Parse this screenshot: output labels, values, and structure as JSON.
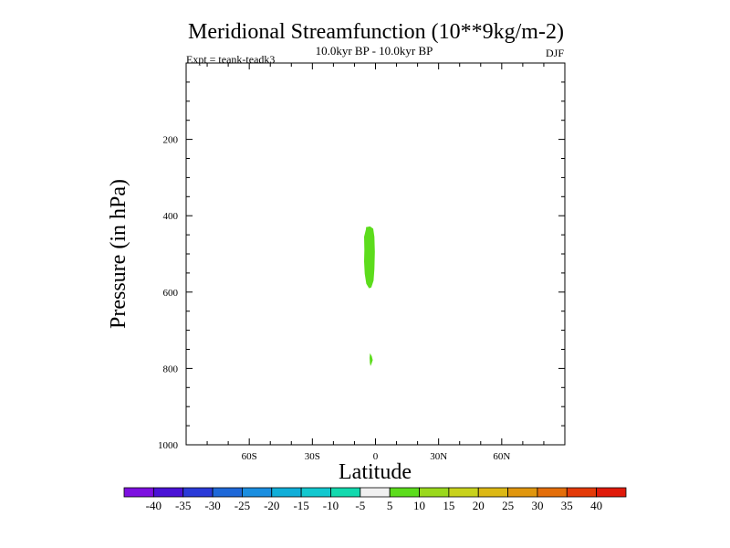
{
  "chart_data": {
    "type": "contour",
    "title": "Meridional Streamfunction (10**9kg/m-2)",
    "subtitle": "10.0kyr BP - 10.0kyr BP",
    "experiment_label": "Expt = teank-teadk3",
    "season": "DJF",
    "xlabel": "Latitude",
    "ylabel": "Pressure (in hPa)",
    "xlim": [
      -90,
      90
    ],
    "ylim": [
      0,
      1000
    ],
    "y_inverted": true,
    "x_ticks": [
      {
        "value": -60,
        "label": "60S"
      },
      {
        "value": -30,
        "label": "30S"
      },
      {
        "value": 0,
        "label": "0"
      },
      {
        "value": 30,
        "label": "30N"
      },
      {
        "value": 60,
        "label": "60N"
      }
    ],
    "y_ticks": [
      {
        "value": 200,
        "label": "200"
      },
      {
        "value": 400,
        "label": "400"
      },
      {
        "value": 600,
        "label": "600"
      },
      {
        "value": 800,
        "label": "800"
      },
      {
        "value": 1000,
        "label": "1000"
      }
    ],
    "x_minor_step": 10,
    "y_minor_step": 50,
    "colorbar": {
      "levels": [
        "-40",
        "-35",
        "-30",
        "-25",
        "-20",
        "-15",
        "-10",
        "-5",
        "5",
        "10",
        "15",
        "20",
        "25",
        "30",
        "35",
        "40"
      ],
      "colors": [
        "#7d10e0",
        "#4a12d6",
        "#2a3ad8",
        "#1e68d8",
        "#1a8ee0",
        "#10aed8",
        "#12c8cf",
        "#12d9ae",
        "#f0f0f0",
        "#5cdc1c",
        "#9ad81c",
        "#c8d21c",
        "#dcb814",
        "#e0960e",
        "#e46e0a",
        "#e43a08",
        "#e01a0a"
      ]
    },
    "regions": [
      {
        "value_range": "5 to 10",
        "color_index": 9,
        "outline": [
          [
            -4.5,
            430
          ],
          [
            -2.6,
            428
          ],
          [
            -1.1,
            434
          ],
          [
            -0.5,
            455
          ],
          [
            -0.3,
            495
          ],
          [
            -0.5,
            540
          ],
          [
            -0.9,
            570
          ],
          [
            -2.0,
            588
          ],
          [
            -3.1,
            590
          ],
          [
            -4.4,
            578
          ],
          [
            -5.1,
            552
          ],
          [
            -5.4,
            520
          ],
          [
            -5.3,
            490
          ],
          [
            -5.4,
            455
          ],
          [
            -4.5,
            435
          ]
        ]
      },
      {
        "value_range": "5 to 10",
        "color_index": 9,
        "outline": [
          [
            -2.6,
            760
          ],
          [
            -1.8,
            768
          ],
          [
            -1.3,
            778
          ],
          [
            -1.9,
            788
          ],
          [
            -2.4,
            794
          ],
          [
            -2.7,
            785
          ],
          [
            -2.8,
            772
          ],
          [
            -2.6,
            760
          ]
        ]
      }
    ]
  }
}
